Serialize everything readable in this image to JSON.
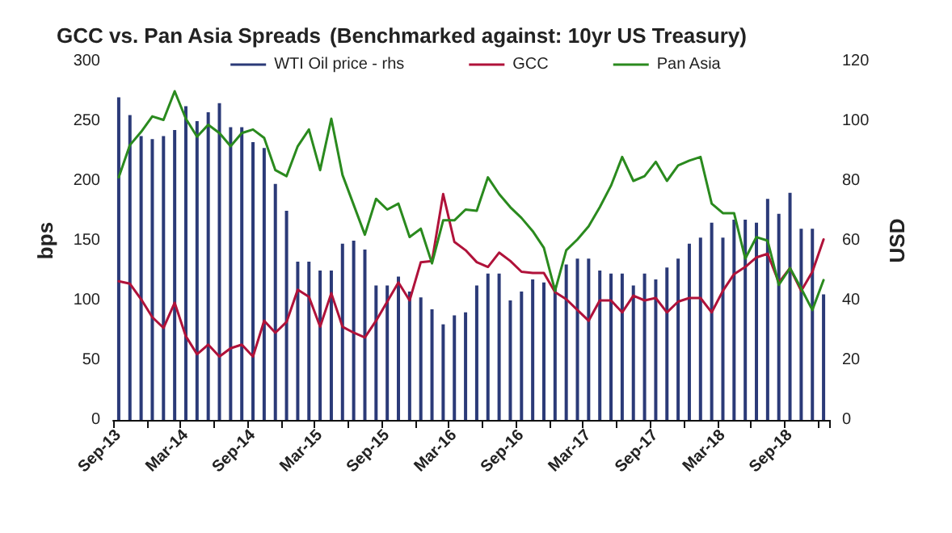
{
  "chart_data": {
    "type": "line",
    "title": "GCC vs. Pan Asia Spreads",
    "subtitle": "(Benchmarked against: 10yr US Treasury)",
    "ylabel": "bps",
    "y2label": "USD",
    "categories": [
      "Sep-13",
      null,
      null,
      null,
      null,
      null,
      "Mar-14",
      null,
      null,
      null,
      null,
      null,
      "Sep-14",
      null,
      null,
      null,
      null,
      null,
      "Mar-15",
      null,
      null,
      null,
      null,
      null,
      "Sep-15",
      null,
      null,
      null,
      null,
      null,
      "Mar-16",
      null,
      null,
      null,
      null,
      null,
      "Sep-16",
      null,
      null,
      null,
      null,
      null,
      "Mar-17",
      null,
      null,
      null,
      null,
      null,
      "Sep-17",
      null,
      null,
      null,
      null,
      null,
      "Mar-18",
      null,
      null,
      null,
      null,
      null,
      "Sep-18",
      null,
      null,
      null
    ],
    "series": [
      {
        "name": "WTI Oil price - rhs",
        "type": "bar",
        "axis": "y2",
        "color": "#2b3a78",
        "values": [
          108,
          102,
          95,
          94,
          95,
          97,
          105,
          100,
          103,
          106,
          98,
          98,
          93,
          91,
          79,
          70,
          53,
          53,
          50,
          50,
          59,
          60,
          57,
          45,
          45,
          48,
          43,
          41,
          37,
          32,
          35,
          36,
          45,
          49,
          49,
          40,
          43,
          47,
          46,
          45,
          52,
          54,
          54,
          50,
          49,
          49,
          45,
          49,
          47,
          51,
          54,
          59,
          61,
          66,
          61,
          67,
          67,
          66,
          74,
          69,
          76,
          64,
          64,
          42
        ]
      },
      {
        "name": "GCC",
        "color": "#b0123a",
        "values": [
          116,
          114,
          101,
          86,
          77,
          98,
          70,
          55,
          63,
          53,
          60,
          63,
          53,
          83,
          73,
          82,
          109,
          103,
          78,
          106,
          78,
          73,
          69,
          83,
          99,
          115,
          100,
          132,
          133,
          189,
          149,
          142,
          132,
          128,
          140,
          133,
          124,
          123,
          123,
          107,
          101,
          92,
          83,
          100,
          100,
          90,
          104,
          100,
          102,
          90,
          99,
          102,
          102,
          90,
          108,
          122,
          128,
          136,
          139,
          115,
          127,
          108,
          124,
          151
        ]
      },
      {
        "name": "Pan Asia",
        "color": "#2a8a1e",
        "values": [
          203,
          230,
          241,
          254,
          251,
          275,
          252,
          237,
          247,
          240,
          229,
          240,
          243,
          236,
          209,
          204,
          229,
          243,
          209,
          252,
          205,
          180,
          155,
          185,
          176,
          181,
          153,
          160,
          131,
          167,
          167,
          176,
          175,
          203,
          189,
          178,
          169,
          158,
          144,
          108,
          142,
          151,
          162,
          178,
          196,
          220,
          200,
          204,
          216,
          200,
          213,
          217,
          220,
          181,
          173,
          173,
          135,
          153,
          150,
          113,
          127,
          110,
          92,
          117
        ]
      }
    ],
    "ylim": [
      0,
      300
    ],
    "yticks": [
      0,
      50,
      100,
      150,
      200,
      250,
      300
    ],
    "y2lim": [
      0,
      120
    ],
    "y2ticks": [
      0,
      20,
      40,
      60,
      80,
      100,
      120
    ],
    "grid": false,
    "legend": "top",
    "marker": "none",
    "line_style": "solid"
  }
}
